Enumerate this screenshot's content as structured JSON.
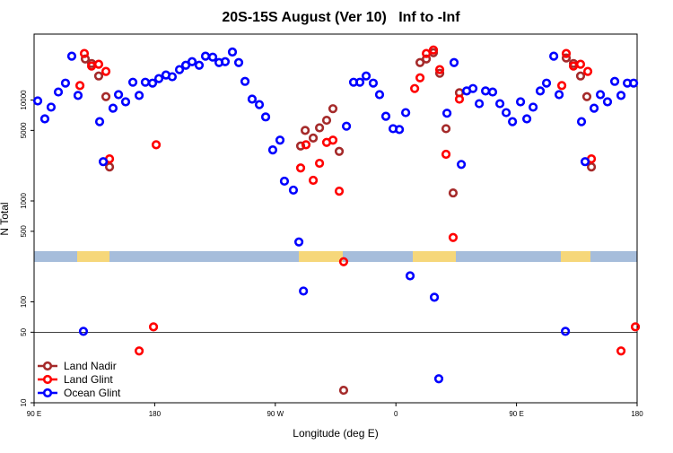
{
  "chart_data": {
    "type": "scatter",
    "title": "20S-15S August (Ver 10)   Inf to -Inf",
    "x_label": "Longitude (deg E)",
    "y_label": "N Total",
    "log_y": true,
    "xlim": [
      90,
      540
    ],
    "ylim": [
      10,
      45000
    ],
    "xticks": [
      {
        "value": 90,
        "label": "90 E"
      },
      180,
      {
        "value": 270,
        "label": "90 W"
      },
      {
        "value": 360,
        "label": "0"
      },
      {
        "value": 450,
        "label": "90 E"
      },
      {
        "value": 540,
        "label": "180"
      }
    ],
    "yticks": [
      10,
      50,
      100,
      500,
      1000,
      5000,
      10000
    ],
    "hline": 50,
    "legend": "lower left",
    "series": [
      {
        "name": "Land Nadir",
        "color": "#a52a2a",
        "x": [
          128.2,
          132.9,
          138.2,
          143.6,
          146.3,
          288.9,
          292.3,
          298.3,
          303.0,
          308.3,
          313.0,
          317.7,
          321.0,
          378.0,
          382.7,
          388.0,
          392.7,
          397.4,
          402.7,
          407.4,
          487.1,
          492.5,
          497.8,
          502.5,
          505.9
        ],
        "values": [
          25500,
          23000,
          17300,
          10800,
          2170,
          3500,
          5000,
          4200,
          5300,
          6300,
          8200,
          3100,
          13.3,
          23500,
          25500,
          29400,
          18400,
          5200,
          1200,
          11800,
          26100,
          23000,
          17300,
          10800,
          2170
        ]
      },
      {
        "name": "Land Glint",
        "color": "#ff0000",
        "x": [
          124.2,
          127.5,
          132.9,
          138.2,
          143.6,
          146.3,
          181.1,
          168.4,
          179.1,
          288.9,
          292.9,
          298.3,
          303.0,
          308.3,
          313.0,
          317.7,
          321.0,
          374.0,
          378.0,
          382.7,
          388.0,
          392.7,
          397.4,
          402.7,
          407.4,
          483.8,
          487.1,
          492.5,
          497.8,
          503.2,
          505.9,
          528.0,
          538.7
        ],
        "values": [
          13900,
          28900,
          21700,
          22600,
          19200,
          2610,
          3600,
          32.6,
          56.5,
          2120,
          3600,
          1600,
          2360,
          3800,
          4000,
          1250,
          250,
          13000,
          16600,
          28900,
          31300,
          20000,
          2900,
          434,
          10200,
          13900,
          28900,
          21700,
          22600,
          19200,
          2610,
          32.6,
          56.5
        ]
      },
      {
        "name": "Ocean Glint",
        "color": "#0000ff",
        "x": [
          92.7,
          98.0,
          102.7,
          108.1,
          113.4,
          118.1,
          122.8,
          126.8,
          138.9,
          141.6,
          148.9,
          153.0,
          158.3,
          163.7,
          168.4,
          173.0,
          178.4,
          183.1,
          188.4,
          193.1,
          198.5,
          203.2,
          207.9,
          213.2,
          217.9,
          223.3,
          228.0,
          232.6,
          238.0,
          242.7,
          247.4,
          252.7,
          258.1,
          262.8,
          268.1,
          273.5,
          276.8,
          283.5,
          287.6,
          291.0,
          323.1,
          328.4,
          333.1,
          337.8,
          343.1,
          347.8,
          352.5,
          357.9,
          362.6,
          367.3,
          370.6,
          388.7,
          392.0,
          398.1,
          403.4,
          408.8,
          412.8,
          417.5,
          422.2,
          426.9,
          432.2,
          437.6,
          442.3,
          447.0,
          453.0,
          457.7,
          462.4,
          467.7,
          472.4,
          477.8,
          481.8,
          486.5,
          498.5,
          501.2,
          507.9,
          512.6,
          517.9,
          523.3,
          528.0,
          532.7,
          537.4
        ],
        "values": [
          9800,
          6500,
          8500,
          12000,
          14700,
          27200,
          11100,
          51,
          6100,
          2450,
          8300,
          11300,
          9600,
          15000,
          11100,
          15000,
          14700,
          16300,
          17700,
          17000,
          20000,
          22100,
          24000,
          22100,
          27200,
          26600,
          23500,
          24000,
          29900,
          23500,
          15300,
          10200,
          9000,
          6800,
          3200,
          4000,
          1570,
          1280,
          392,
          128,
          5500,
          15000,
          15000,
          17300,
          14700,
          11300,
          6900,
          5200,
          5100,
          7500,
          181,
          111,
          17.3,
          7400,
          23500,
          2300,
          12300,
          13000,
          9200,
          12300,
          12000,
          9200,
          7500,
          6100,
          9600,
          6500,
          8500,
          12300,
          14700,
          27200,
          11300,
          51,
          6100,
          2450,
          8300,
          11300,
          9600,
          15300,
          11100,
          14700,
          14700
        ]
      }
    ]
  }
}
